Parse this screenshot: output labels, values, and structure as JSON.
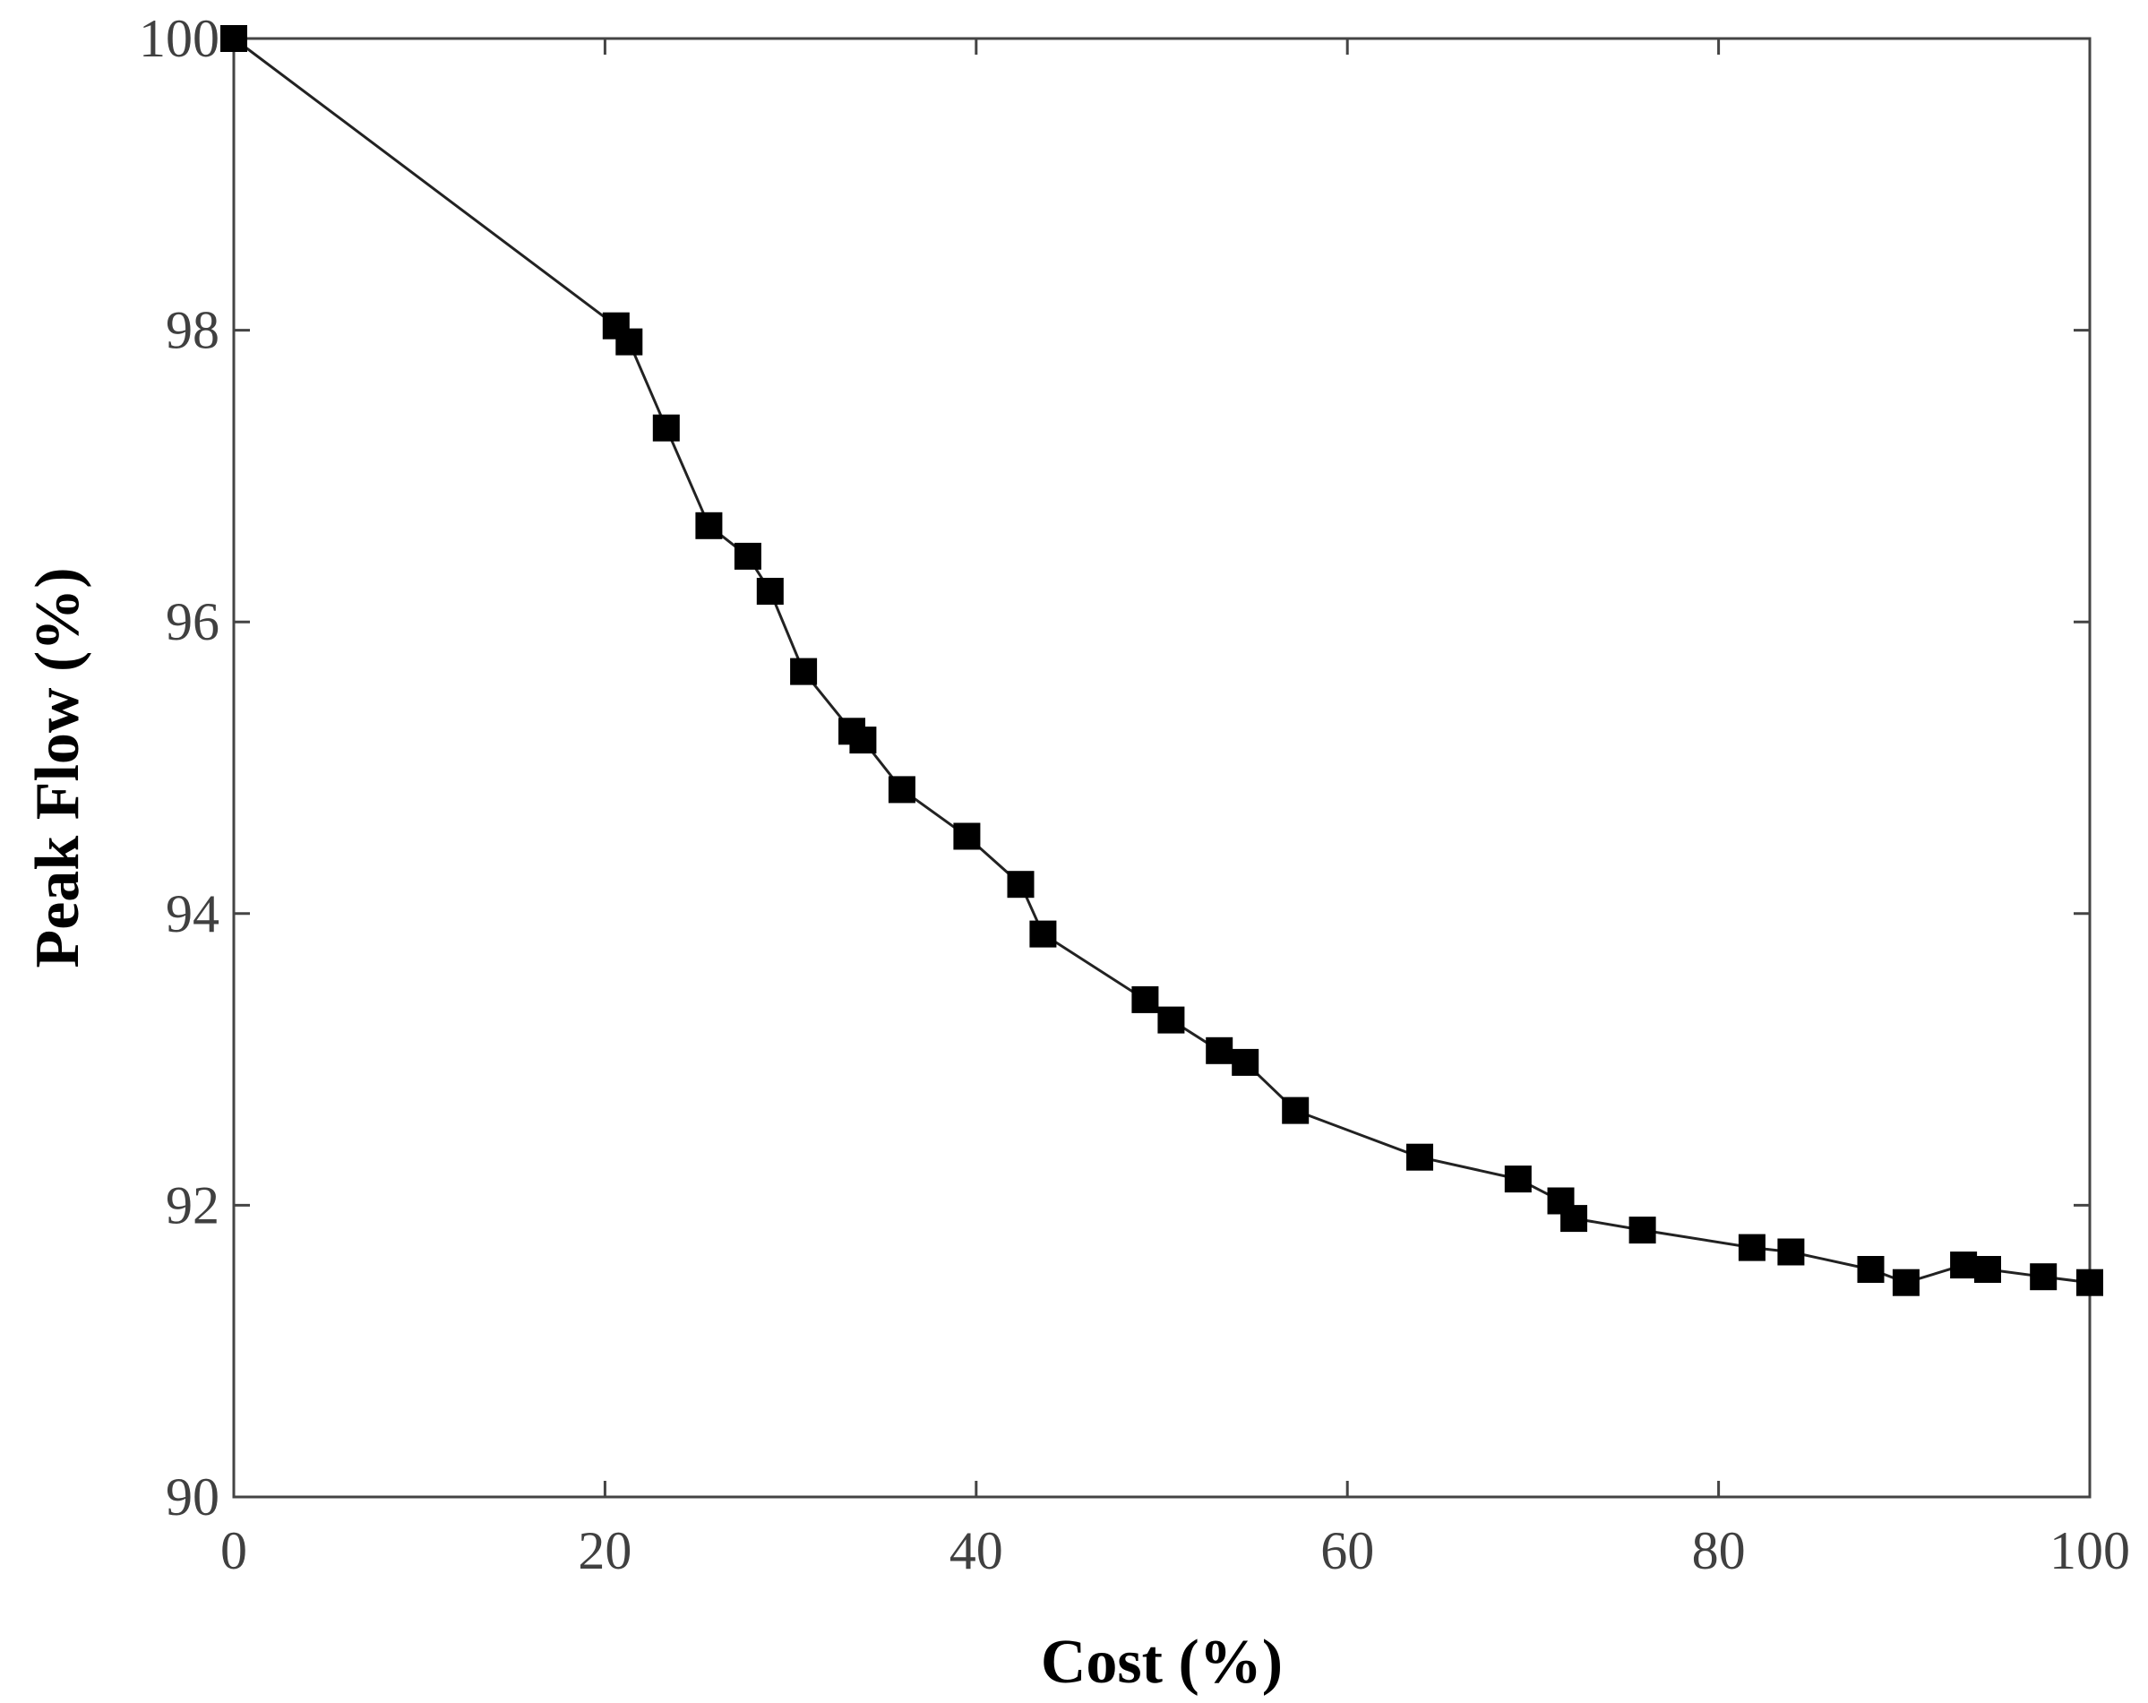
{
  "chart_data": {
    "type": "line",
    "title": "",
    "xlabel": "Cost (%)",
    "ylabel": "Peak Flow (%)",
    "xlim": [
      0,
      100
    ],
    "ylim": [
      90,
      100
    ],
    "xticks": [
      0,
      20,
      40,
      60,
      80,
      100
    ],
    "yticks": [
      90,
      92,
      94,
      96,
      98,
      100
    ],
    "grid": false,
    "legend": "none",
    "marker": "square",
    "color": "#000000",
    "series": [
      {
        "x": [
          0,
          20.6,
          21.3,
          23.3,
          25.6,
          27.7,
          28.9,
          30.7,
          33.3,
          33.9,
          36.0,
          39.5,
          42.4,
          43.6,
          49.1,
          50.5,
          53.1,
          54.5,
          57.2,
          63.9,
          69.2,
          71.5,
          72.2,
          75.9,
          81.8,
          83.9,
          88.2,
          90.1,
          93.2,
          94.5,
          97.5,
          100
        ],
        "y": [
          100,
          98.03,
          97.92,
          97.33,
          96.66,
          96.45,
          96.21,
          95.66,
          95.25,
          95.19,
          94.85,
          94.53,
          94.2,
          93.86,
          93.41,
          93.27,
          93.06,
          92.98,
          92.65,
          92.33,
          92.18,
          92.03,
          91.91,
          91.83,
          91.71,
          91.68,
          91.56,
          91.47,
          91.59,
          91.56,
          91.51,
          91.47
        ]
      }
    ]
  }
}
